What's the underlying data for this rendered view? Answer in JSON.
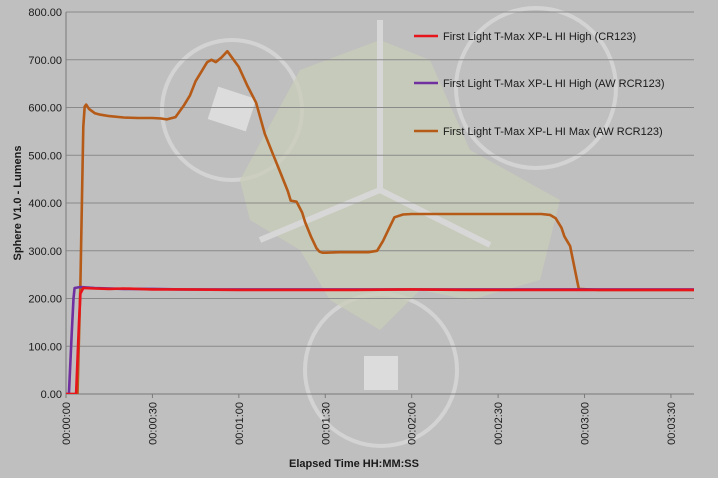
{
  "chart_data": {
    "type": "line",
    "title": "",
    "xlabel": "Elapsed Time HH:MM:SS",
    "ylabel": "Sphere V1.0 - Lumens",
    "x_unit": "seconds of elapsed time (tick labels shown as HH:MM:SS)",
    "xlim": [
      0,
      218
    ],
    "ylim": [
      0,
      800
    ],
    "x_ticks": [
      {
        "value": 0,
        "label": "00:00:00"
      },
      {
        "value": 30,
        "label": "00:00:30"
      },
      {
        "value": 60,
        "label": "00:01:00"
      },
      {
        "value": 90,
        "label": "00:01:30"
      },
      {
        "value": 120,
        "label": "00:02:00"
      },
      {
        "value": 150,
        "label": "00:02:30"
      },
      {
        "value": 180,
        "label": "00:03:00"
      },
      {
        "value": 210,
        "label": "00:03:30"
      }
    ],
    "y_ticks": [
      {
        "value": 0,
        "label": "0.00"
      },
      {
        "value": 100,
        "label": "100.00"
      },
      {
        "value": 200,
        "label": "200.00"
      },
      {
        "value": 300,
        "label": "300.00"
      },
      {
        "value": 400,
        "label": "400.00"
      },
      {
        "value": 500,
        "label": "500.00"
      },
      {
        "value": 600,
        "label": "600.00"
      },
      {
        "value": 700,
        "label": "700.00"
      },
      {
        "value": 800,
        "label": "800.00"
      }
    ],
    "grid": "horizontal",
    "legend_position": "top-right",
    "series": [
      {
        "name": "First Light T-Max XP-L HI High (CR123)",
        "color": "#e8141b",
        "x": [
          0,
          3.5,
          4.5,
          5,
          6,
          10,
          15,
          20,
          30,
          40,
          60,
          80,
          100,
          120,
          140,
          160,
          180,
          200,
          218
        ],
        "y": [
          0,
          0,
          150,
          210,
          222,
          221,
          220,
          221,
          219,
          219,
          218,
          218,
          218,
          219,
          218,
          218,
          218,
          218,
          218
        ]
      },
      {
        "name": "First Light T-Max XP-L HI High (AW RCR123)",
        "color": "#7030a0",
        "x": [
          0,
          1,
          2,
          2.6,
          3,
          5,
          10,
          20,
          30,
          40,
          50,
          60,
          80,
          100,
          120,
          140,
          160,
          180,
          200,
          218
        ],
        "y": [
          0,
          0,
          130,
          200,
          222,
          224,
          222,
          220,
          220,
          219,
          219,
          219,
          219,
          219,
          219,
          219,
          219,
          219,
          219,
          219
        ]
      },
      {
        "name": "First Light T-Max XP-L HI Max (AW RCR123)",
        "color": "#b55a17",
        "x": [
          0,
          4,
          5,
          6,
          6.5,
          7,
          8,
          10,
          12,
          15,
          20,
          25,
          30,
          33,
          35,
          38,
          41,
          43,
          45,
          47,
          49,
          50.5,
          52,
          54,
          56,
          60,
          63,
          66,
          69,
          72,
          74,
          76,
          77,
          78,
          80,
          82,
          83,
          85,
          87,
          88,
          89,
          90,
          95,
          100,
          105,
          108,
          110,
          112,
          114,
          117,
          120,
          130,
          140,
          150,
          160,
          165,
          168,
          170,
          172,
          173,
          174,
          175,
          178,
          185,
          195,
          205,
          218
        ],
        "y": [
          0,
          0,
          230,
          560,
          602,
          606,
          597,
          588,
          585,
          582,
          579,
          578,
          578,
          577,
          575,
          580,
          605,
          625,
          655,
          675,
          695,
          700,
          695,
          705,
          718,
          685,
          645,
          610,
          545,
          500,
          470,
          440,
          425,
          405,
          403,
          380,
          360,
          330,
          305,
          298,
          296,
          296,
          297,
          297,
          297,
          300,
          320,
          345,
          370,
          376,
          377,
          377,
          377,
          377,
          377,
          377,
          375,
          368,
          348,
          330,
          320,
          310,
          220,
          218,
          218,
          218,
          218
        ]
      }
    ]
  }
}
